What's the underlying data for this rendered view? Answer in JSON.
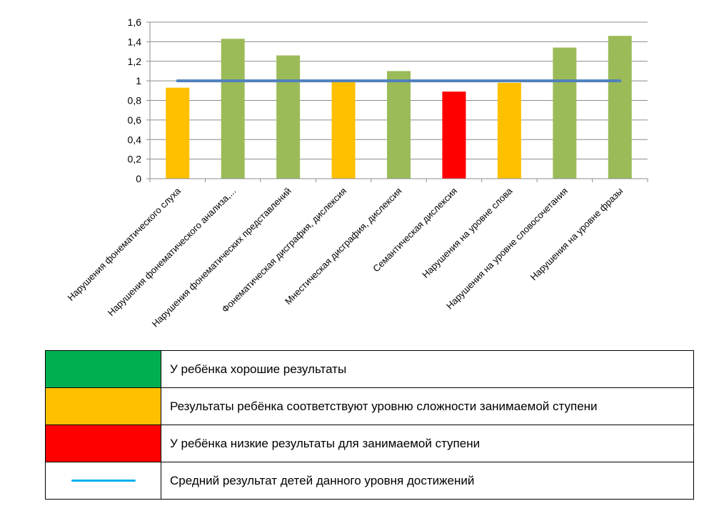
{
  "chart_data": {
    "type": "bar",
    "categories": [
      "Нарушения фонематического слуха",
      "Нарушения фонематического анализа,...",
      "Нарушения фонематических представлений",
      "Фонематическая дисграфия, дислексия",
      "Мнестическая дисграфия, дислексия",
      "Семантическая дислексия",
      "Нарушения на уровне слова",
      "Нарушения на уровне словосочетания",
      "Нарушения на уровне фразы"
    ],
    "values": [
      0.93,
      1.43,
      1.26,
      0.99,
      1.1,
      0.89,
      0.98,
      1.34,
      1.46
    ],
    "bar_colors": [
      "#FFC000",
      "#9BBB59",
      "#9BBB59",
      "#FFC000",
      "#9BBB59",
      "#FF0000",
      "#FFC000",
      "#9BBB59",
      "#9BBB59"
    ],
    "average_line": {
      "value": 1.0,
      "color": "#4F81BD"
    },
    "ylim": [
      0,
      1.6
    ],
    "yticks": [
      "0",
      "0,2",
      "0,4",
      "0,6",
      "0,8",
      "1",
      "1,2",
      "1,4",
      "1,6"
    ],
    "grid": true,
    "title": "",
    "xlabel": "",
    "ylabel": ""
  },
  "legend": [
    {
      "color": "#00B050",
      "text": "У ребёнка хорошие результаты"
    },
    {
      "color": "#FFC000",
      "text": "Результаты ребёнка соответствуют уровню сложности занимаемой ступени"
    },
    {
      "color": "#FF0000",
      "text": "У ребёнка низкие результаты для занимаемой ступени"
    },
    {
      "color": "#00B0F0",
      "text": "Средний результат детей данного уровня достижений",
      "is_line": true
    }
  ]
}
